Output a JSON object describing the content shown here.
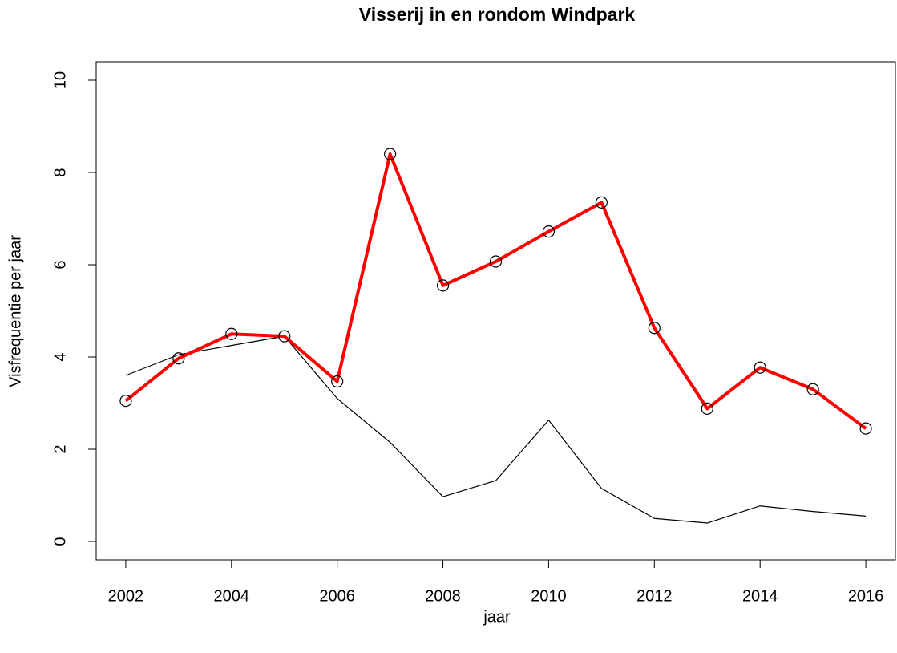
{
  "chart_data": {
    "type": "line",
    "title": "Visserij in en rondom Windpark",
    "xlabel": "jaar",
    "ylabel": "Visfrequentie per jaar",
    "x": [
      2002,
      2003,
      2004,
      2005,
      2006,
      2007,
      2008,
      2009,
      2010,
      2011,
      2012,
      2013,
      2014,
      2015,
      2016
    ],
    "series": [
      {
        "color": "#000000",
        "values": [
          3.6,
          4.05,
          4.25,
          4.45,
          3.1,
          2.15,
          0.97,
          1.32,
          2.63,
          1.15,
          0.5,
          0.4,
          0.77,
          0.65,
          0.55
        ]
      },
      {
        "color": "#ff0000",
        "marker": "circle",
        "values": [
          3.05,
          3.97,
          4.5,
          4.45,
          3.47,
          8.4,
          5.55,
          6.07,
          6.72,
          7.35,
          4.63,
          2.88,
          3.77,
          3.3,
          2.45
        ]
      }
    ],
    "xlim": [
      2001.44,
      2016.56
    ],
    "ylim": [
      -0.4,
      10.4
    ],
    "xticks": [
      2002,
      2004,
      2006,
      2008,
      2010,
      2012,
      2014,
      2016
    ],
    "yticks": [
      0,
      2,
      4,
      6,
      8,
      10
    ]
  }
}
